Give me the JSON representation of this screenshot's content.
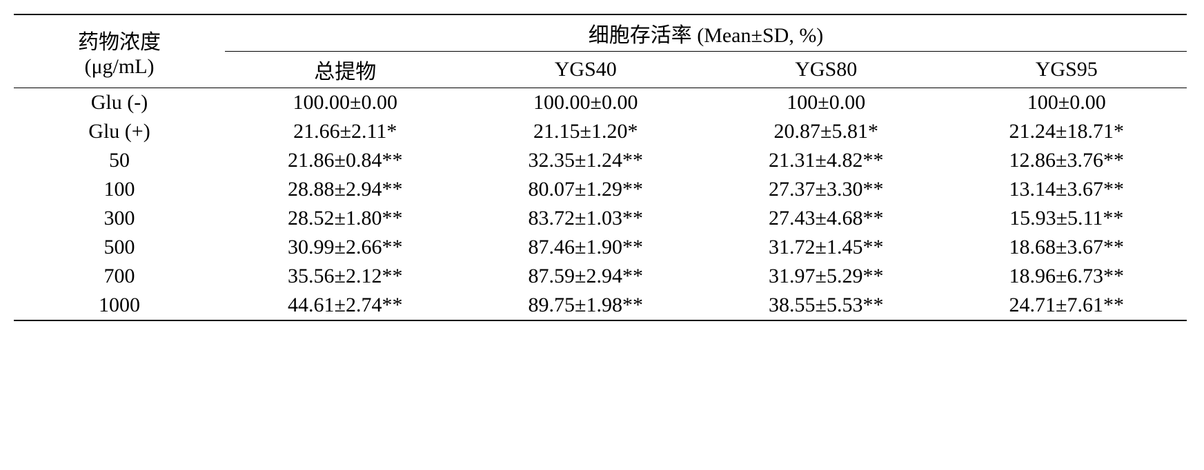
{
  "table": {
    "header": {
      "concentration_label_line1": "药物浓度",
      "concentration_label_line2": "(μg/mL)",
      "group_label": "细胞存活率 (Mean±SD, %)",
      "columns": [
        "总提物",
        "YGS40",
        "YGS80",
        "YGS95"
      ]
    },
    "rows": [
      {
        "conc": "Glu (-)",
        "c1": "100.00±0.00",
        "c2": "100.00±0.00",
        "c3": "100±0.00",
        "c4": "100±0.00"
      },
      {
        "conc": "Glu (+)",
        "c1": "21.66±2.11*",
        "c2": "21.15±1.20*",
        "c3": "20.87±5.81*",
        "c4": "21.24±18.71*"
      },
      {
        "conc": "50",
        "c1": "21.86±0.84**",
        "c2": "32.35±1.24**",
        "c3": "21.31±4.82**",
        "c4": "12.86±3.76**"
      },
      {
        "conc": "100",
        "c1": "28.88±2.94**",
        "c2": "80.07±1.29**",
        "c3": "27.37±3.30**",
        "c4": "13.14±3.67**"
      },
      {
        "conc": "300",
        "c1": "28.52±1.80**",
        "c2": "83.72±1.03**",
        "c3": "27.43±4.68**",
        "c4": "15.93±5.11**"
      },
      {
        "conc": "500",
        "c1": "30.99±2.66**",
        "c2": "87.46±1.90**",
        "c3": "31.72±1.45**",
        "c4": "18.68±3.67**"
      },
      {
        "conc": "700",
        "c1": "35.56±2.12**",
        "c2": "87.59±2.94**",
        "c3": "31.97±5.29**",
        "c4": "18.96±6.73**"
      },
      {
        "conc": "1000",
        "c1": "44.61±2.74**",
        "c2": "89.75±1.98**",
        "c3": "38.55±5.53**",
        "c4": "24.71±7.61**"
      }
    ]
  }
}
